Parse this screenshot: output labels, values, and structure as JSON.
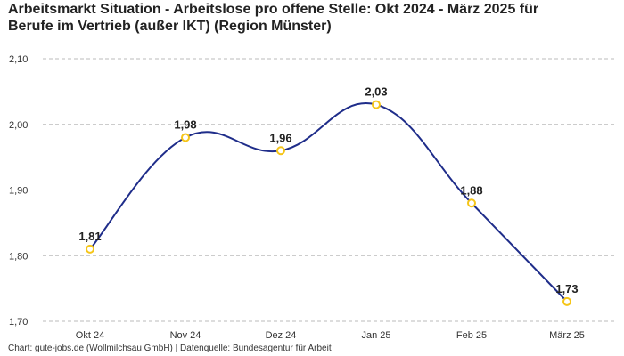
{
  "chart_data": {
    "type": "line",
    "title_line1": "Arbeitsmarkt Situation - Arbeitslose pro offene Stelle: Okt 2024 - März 2025 für",
    "title_line2": "Berufe im Vertrieb (außer IKT) (Region Münster)",
    "categories": [
      "Okt 24",
      "Nov 24",
      "Dez 24",
      "Jan 25",
      "Feb 25",
      "März 25"
    ],
    "values": [
      1.81,
      1.98,
      1.96,
      2.03,
      1.88,
      1.73
    ],
    "value_labels": [
      "1,81",
      "1,98",
      "1,96",
      "2,03",
      "1,88",
      "1,73"
    ],
    "y_ticks": [
      1.7,
      1.8,
      1.9,
      2.0,
      2.1
    ],
    "y_tick_labels": [
      "1,70",
      "1,80",
      "1,90",
      "2,00",
      "2,10"
    ],
    "ylim": [
      1.7,
      2.1
    ],
    "xlabel": "",
    "ylabel": "",
    "grid": true,
    "line_color": "#1f2d8a",
    "marker_color": "#f5c518"
  },
  "source": "Chart: gute-jobs.de (Wollmilchsau GmbH) | Datenquelle: Bundesagentur für Arbeit"
}
